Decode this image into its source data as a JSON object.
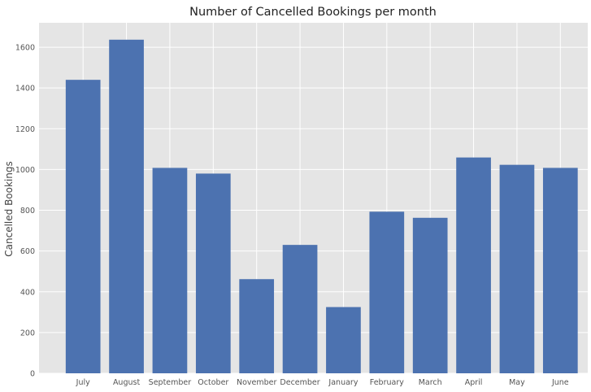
{
  "chart_data": {
    "type": "bar",
    "title": "Number of Cancelled Bookings per month",
    "xlabel": "",
    "ylabel": "Cancelled Bookings",
    "categories": [
      "July",
      "August",
      "September",
      "October",
      "November",
      "December",
      "January",
      "February",
      "March",
      "April",
      "May",
      "June"
    ],
    "values": [
      1440,
      1637,
      1008,
      980,
      462,
      630,
      325,
      793,
      763,
      1059,
      1023,
      1008
    ],
    "yticks": [
      0,
      200,
      400,
      600,
      800,
      1000,
      1200,
      1400,
      1600
    ],
    "ylim": [
      0,
      1720
    ],
    "grid": true,
    "legend": "none"
  },
  "colors": {
    "bar": "#4c72b0",
    "plot_background": "#e5e5e5",
    "grid": "#ffffff"
  }
}
